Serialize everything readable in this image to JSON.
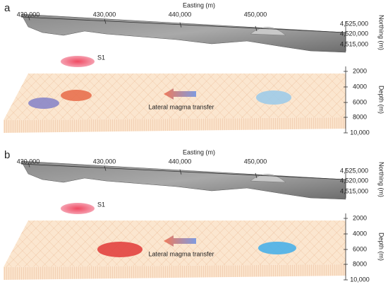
{
  "panels": [
    {
      "label": "a",
      "easting_title": "Easting (m)",
      "easting_ticks": [
        "420,000",
        "430,000",
        "440,000",
        "450,000"
      ],
      "northing_title": "Northing (m)",
      "northing_ticks": [
        "4,525,000",
        "4,520,000",
        "4,515,000"
      ],
      "depth_title": "Depth (m)",
      "depth_ticks": [
        "2000",
        "4000",
        "6000",
        "8000",
        "10,000"
      ],
      "source_label": "S1",
      "arrow_label": "Lateral magma transfer"
    },
    {
      "label": "b",
      "easting_title": "Easting (m)",
      "easting_ticks": [
        "420,000",
        "430,000",
        "440,000",
        "450,000"
      ],
      "northing_title": "Northing (m)",
      "northing_ticks": [
        "4,525,000",
        "4,520,000",
        "4,515,000"
      ],
      "depth_title": "Depth (m)",
      "depth_ticks": [
        "2000",
        "4000",
        "6000",
        "8000",
        "10,000"
      ],
      "source_label": "S1",
      "arrow_label": "Lateral magma transfer"
    }
  ]
}
